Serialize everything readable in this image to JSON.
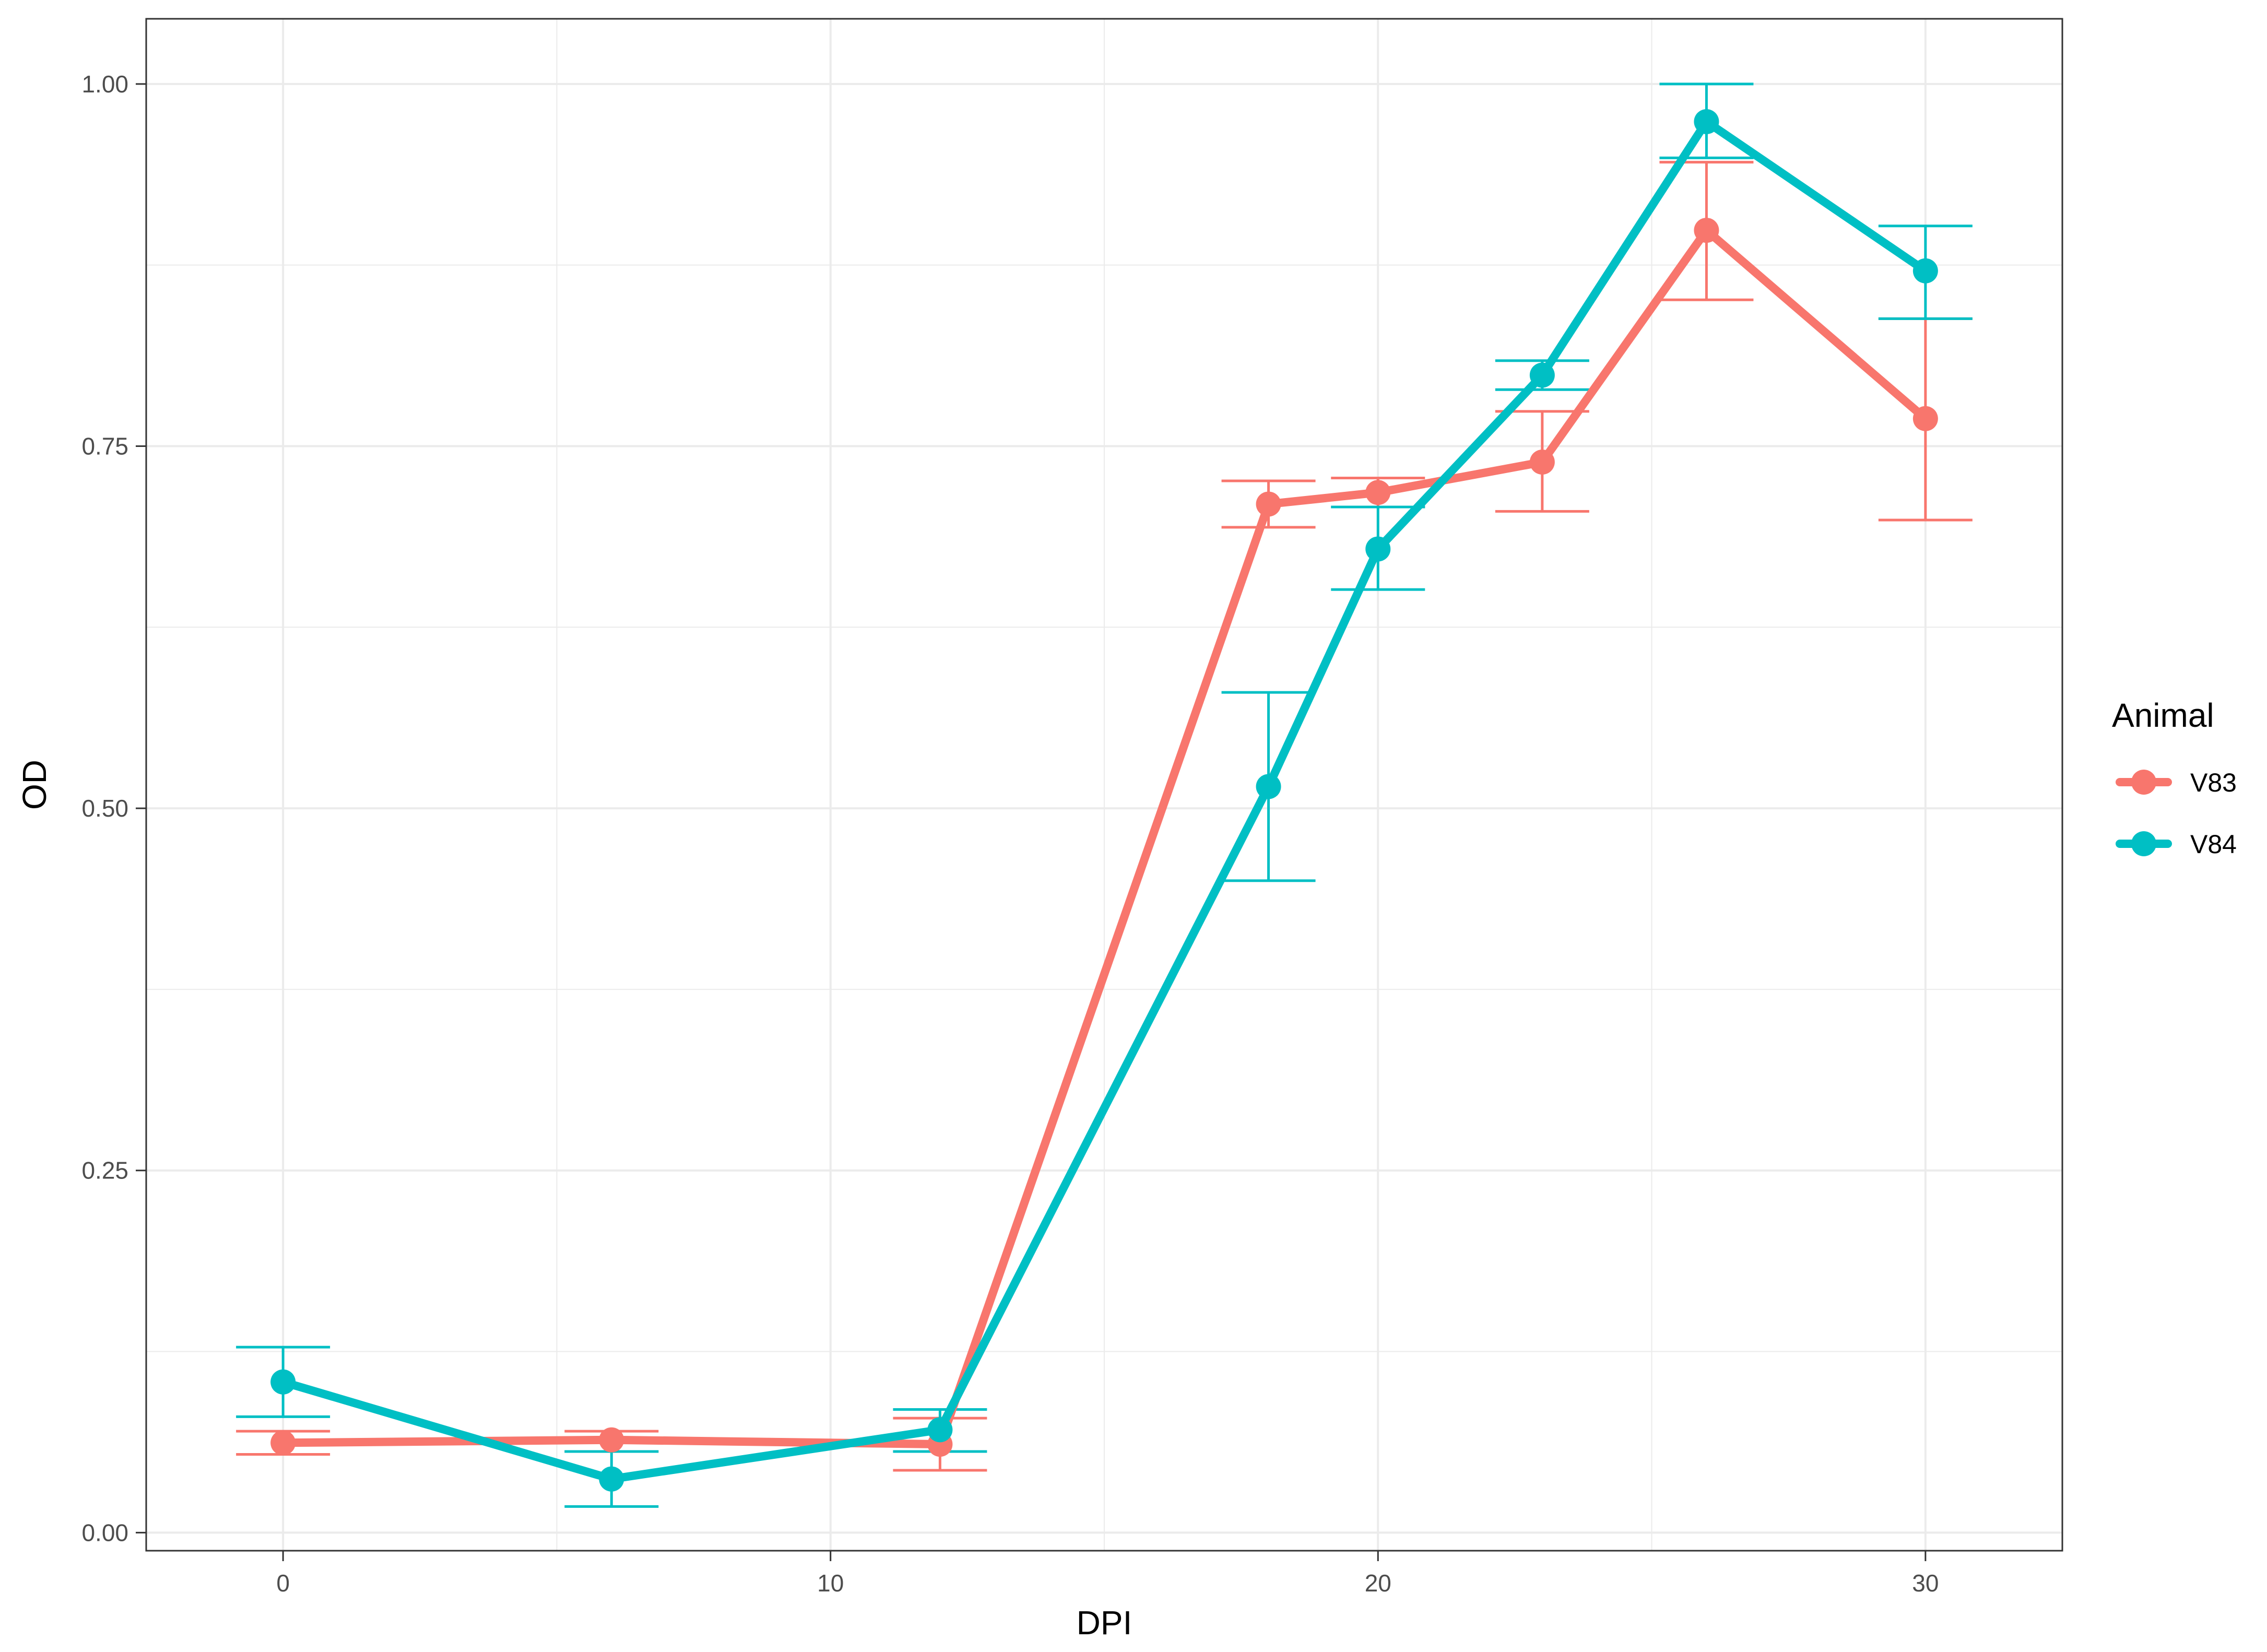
{
  "chart_data": {
    "type": "line",
    "title": "",
    "xlabel": "DPI",
    "ylabel": "OD",
    "xlim": [
      -2.5,
      32.5
    ],
    "ylim": [
      -0.0125,
      1.045
    ],
    "x_ticks": [
      0,
      10,
      20,
      30
    ],
    "x_tick_labels": [
      "0",
      "10",
      "20",
      "30"
    ],
    "y_ticks": [
      0,
      0.25,
      0.5,
      0.75,
      1.0
    ],
    "y_tick_labels": [
      "0.00",
      "0.25",
      "0.50",
      "0.75",
      "1.00"
    ],
    "grid": true,
    "legend": {
      "title": "Animal",
      "position": "right"
    },
    "error_bars": true,
    "series": [
      {
        "name": "V83",
        "color": "#F8766D",
        "x": [
          0,
          6,
          12,
          18,
          20,
          23,
          26,
          30
        ],
        "y": [
          0.062,
          0.064,
          0.061,
          0.71,
          0.718,
          0.739,
          0.899,
          0.769
        ],
        "err_low": [
          0.054,
          0.056,
          0.043,
          0.694,
          0.708,
          0.705,
          0.851,
          0.699
        ],
        "err_high": [
          0.07,
          0.07,
          0.079,
          0.726,
          0.728,
          0.774,
          0.946,
          0.838
        ]
      },
      {
        "name": "V84",
        "color": "#00BFC4",
        "x": [
          0,
          6,
          12,
          18,
          20,
          23,
          26,
          30
        ],
        "y": [
          0.104,
          0.037,
          0.071,
          0.515,
          0.679,
          0.799,
          0.974,
          0.871
        ],
        "err_low": [
          0.08,
          0.018,
          0.056,
          0.45,
          0.651,
          0.789,
          0.949,
          0.838
        ],
        "err_high": [
          0.128,
          0.056,
          0.085,
          0.58,
          0.708,
          0.809,
          1.0,
          0.902
        ]
      }
    ]
  }
}
